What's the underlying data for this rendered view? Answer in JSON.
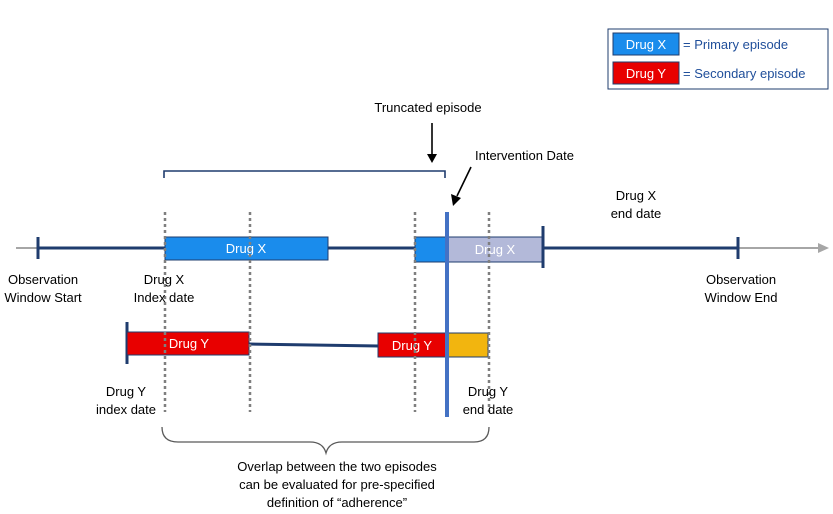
{
  "legend": {
    "primary": {
      "box_label": "Drug X",
      "desc": "= Primary episode"
    },
    "secondary": {
      "box_label": "Drug Y",
      "desc": "= Secondary episode"
    }
  },
  "annotations": {
    "truncated_episode": "Truncated episode",
    "intervention_date": "Intervention Date",
    "drug_x_end_date": [
      "Drug X",
      "end date"
    ],
    "obs_window_start": [
      "Observation",
      "Window Start"
    ],
    "drug_x_index_date": [
      "Drug X",
      "Index date"
    ],
    "obs_window_end": [
      "Observation",
      "Window End"
    ],
    "drug_y_index_date": [
      "Drug Y",
      "index date"
    ],
    "drug_y_end_date": [
      "Drug Y",
      "end date"
    ],
    "overlap_note": [
      "Overlap between the two episodes",
      "can be evaluated for pre-specified",
      "definition of “adherence”"
    ]
  },
  "bars": {
    "drug_x_1": "Drug X",
    "drug_x_2": "Drug X",
    "drug_y_1": "Drug Y",
    "drug_y_2": "Drug Y"
  },
  "colors": {
    "drug_x": "#1a8cec",
    "drug_x_truncated": "#b3b9d9",
    "drug_y": "#e80000",
    "overlap": "#f2b50f",
    "timeline": "#1f3c6e",
    "arrow_gray": "#a6a6a6",
    "intervention_line": "#4472c4",
    "dotted": "#7f7f7f",
    "legend_text": "#1f4e9a"
  }
}
